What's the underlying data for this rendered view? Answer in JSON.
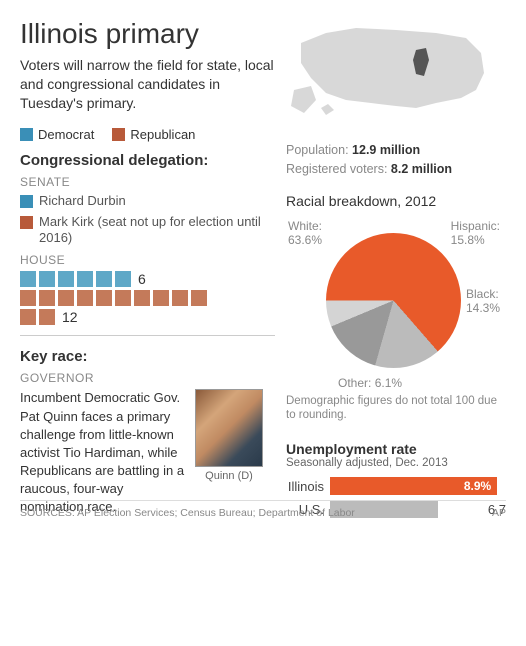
{
  "title": "Illinois primary",
  "subtitle": "Voters will narrow the field for state, local and congressional candidates in Tuesday's primary.",
  "legend": {
    "dem": "Democrat",
    "rep": "Republican"
  },
  "colors": {
    "dem": "#3a8fb7",
    "rep": "#b85a3a",
    "orange": "#e85a2a",
    "gray": "#bbbbbb",
    "text_gray": "#888888"
  },
  "delegation": {
    "heading": "Congressional delegation:",
    "senate_label": "SENATE",
    "senate": [
      {
        "party": "dem",
        "name": "Richard Durbin"
      },
      {
        "party": "rep",
        "name": "Mark Kirk (seat not up for election until 2016)"
      }
    ],
    "house_label": "HOUSE",
    "house": {
      "dem": 6,
      "rep": 12
    }
  },
  "key_race": {
    "heading": "Key race:",
    "office": "GOVERNOR",
    "text": "Incumbent Democratic Gov. Pat Quinn faces a primary challenge from little-known activist Tio Hardiman, while Republicans are battling in a raucous, four-way nomination race.",
    "photo_caption": "Quinn (D)"
  },
  "stats": {
    "population_label": "Population:",
    "population": "12.9 million",
    "registered_label": "Registered voters:",
    "registered": "8.2 million"
  },
  "pie": {
    "title": "Racial breakdown, 2012",
    "slices": [
      {
        "label": "White:",
        "value": "63.6%",
        "pct": 63.6,
        "color": "#e85a2a"
      },
      {
        "label": "Hispanic:",
        "value": "15.8%",
        "pct": 15.8,
        "color": "#bbbbbb"
      },
      {
        "label": "Black:",
        "value": "14.3%",
        "pct": 14.3,
        "color": "#999999"
      },
      {
        "label": "Other:",
        "value": "6.1%",
        "pct": 6.1,
        "color": "#d4d4d4"
      }
    ],
    "note": "Demographic figures do not total 100 due to rounding."
  },
  "unemployment": {
    "title": "Unemployment rate",
    "sub": "Seasonally adjusted, Dec. 2013",
    "rows": [
      {
        "label": "Illinois",
        "value": "8.9%",
        "pct": 95,
        "color": "#e85a2a",
        "text_color": "#ffffff"
      },
      {
        "label": "U.S.",
        "value": "6.7",
        "pct": 72,
        "color": "#bbbbbb",
        "text_color": "#444444"
      }
    ]
  },
  "sources": {
    "left": "SOURCES: AP Election Services; Census Bureau; Department of Labor",
    "right": "AP"
  }
}
